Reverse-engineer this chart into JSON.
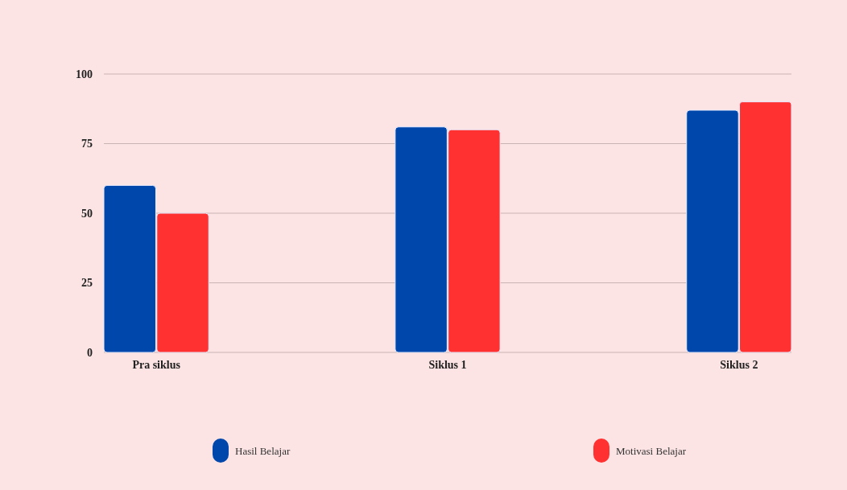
{
  "chart_data": {
    "type": "bar",
    "categories": [
      "Pra siklus",
      "Siklus 1",
      "Siklus 2"
    ],
    "series": [
      {
        "name": "Hasil Belajar",
        "color": "#0047ab",
        "values": [
          60,
          81,
          87
        ]
      },
      {
        "name": "Motivasi Belajar",
        "color": "#ff3131",
        "values": [
          50,
          80,
          90
        ]
      }
    ],
    "ylim": [
      0,
      100
    ],
    "yticks": [
      0,
      25,
      50,
      75,
      100
    ],
    "grid": "y",
    "legend": "bottom"
  }
}
